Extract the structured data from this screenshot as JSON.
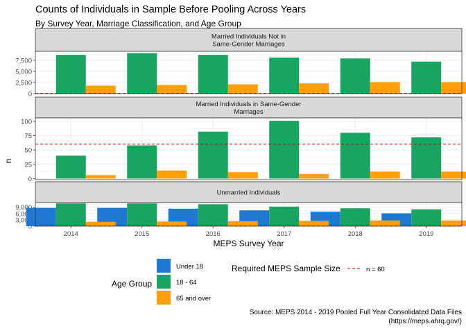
{
  "title": "Counts of Individuals in Sample Before Pooling Across Years",
  "subtitle": "By Survey Year, Marriage Classification, and Age Group",
  "source_line1": "Source: MEPS 2014 - 2019 Pooled Full Year Consolidated Data Files",
  "source_line2": "(https://meps.ahrq.gov/)",
  "colors": {
    "under18": "#1f78d1",
    "age18_64": "#1aa361",
    "age65": "#ff9f0a",
    "threshold": "#cc0000",
    "strip_bg": "#d9d9d9",
    "grid": "#ebebeb"
  },
  "chart_data": {
    "type": "bar",
    "xlabel": "MEPS Survey Year",
    "ylabel": "n",
    "categories": [
      "2014",
      "2015",
      "2016",
      "2017",
      "2018",
      "2019"
    ],
    "threshold": {
      "value": 60,
      "label": "n = 60",
      "legend_title": "Required MEPS Sample Size"
    },
    "legend": {
      "title": "Age Group",
      "entries": [
        "Under 18",
        "18 - 64",
        "65 and over"
      ]
    },
    "panels": [
      {
        "strip": [
          "Married Individuals Not in",
          "Same-Gender Marriages"
        ],
        "ylim": [
          0,
          9500
        ],
        "yticks": [
          0,
          2500,
          5000,
          7500
        ],
        "ytick_labels": [
          "0",
          "2,500",
          "5,000",
          "7,500"
        ],
        "series": [
          {
            "name": "Under 18",
            "values": [
              0,
              0,
              0,
              0,
              0,
              0
            ]
          },
          {
            "name": "18 - 64",
            "values": [
              8700,
              9100,
              8700,
              8100,
              7900,
              7200
            ]
          },
          {
            "name": "65 and over",
            "values": [
              1800,
              1950,
              2100,
              2300,
              2600,
              2600
            ]
          }
        ]
      },
      {
        "strip": [
          "Married Individuals in Same-Gender",
          "Marriages"
        ],
        "ylim": [
          -2,
          106
        ],
        "yticks": [
          0,
          25,
          50,
          75,
          100
        ],
        "ytick_labels": [
          "0",
          "25",
          "50",
          "75",
          "100"
        ],
        "series": [
          {
            "name": "Under 18",
            "values": [
              0,
              0,
              0,
              0,
              0,
              0
            ]
          },
          {
            "name": "18 - 64",
            "values": [
              40,
              58,
              82,
              101,
              80,
              72
            ]
          },
          {
            "name": "65 and over",
            "values": [
              6,
              14,
              11,
              8,
              12,
              12
            ]
          }
        ]
      },
      {
        "strip": [
          "Unmarried Individuals"
        ],
        "ylim": [
          0,
          11200
        ],
        "yticks": [
          0,
          3000,
          6000,
          9000
        ],
        "ytick_labels": [
          "0",
          "3,000",
          "6,000",
          "9,000"
        ],
        "series": [
          {
            "name": "Under 18",
            "values": [
              8700,
              8700,
              8300,
              7500,
              6900,
              6100
            ]
          },
          {
            "name": "18 - 64",
            "values": [
              10800,
              10800,
              10400,
              9300,
              8500,
              8000
            ]
          },
          {
            "name": "65 and over",
            "values": [
              2100,
              2200,
              2400,
              2500,
              2700,
              2700
            ]
          }
        ]
      }
    ]
  }
}
